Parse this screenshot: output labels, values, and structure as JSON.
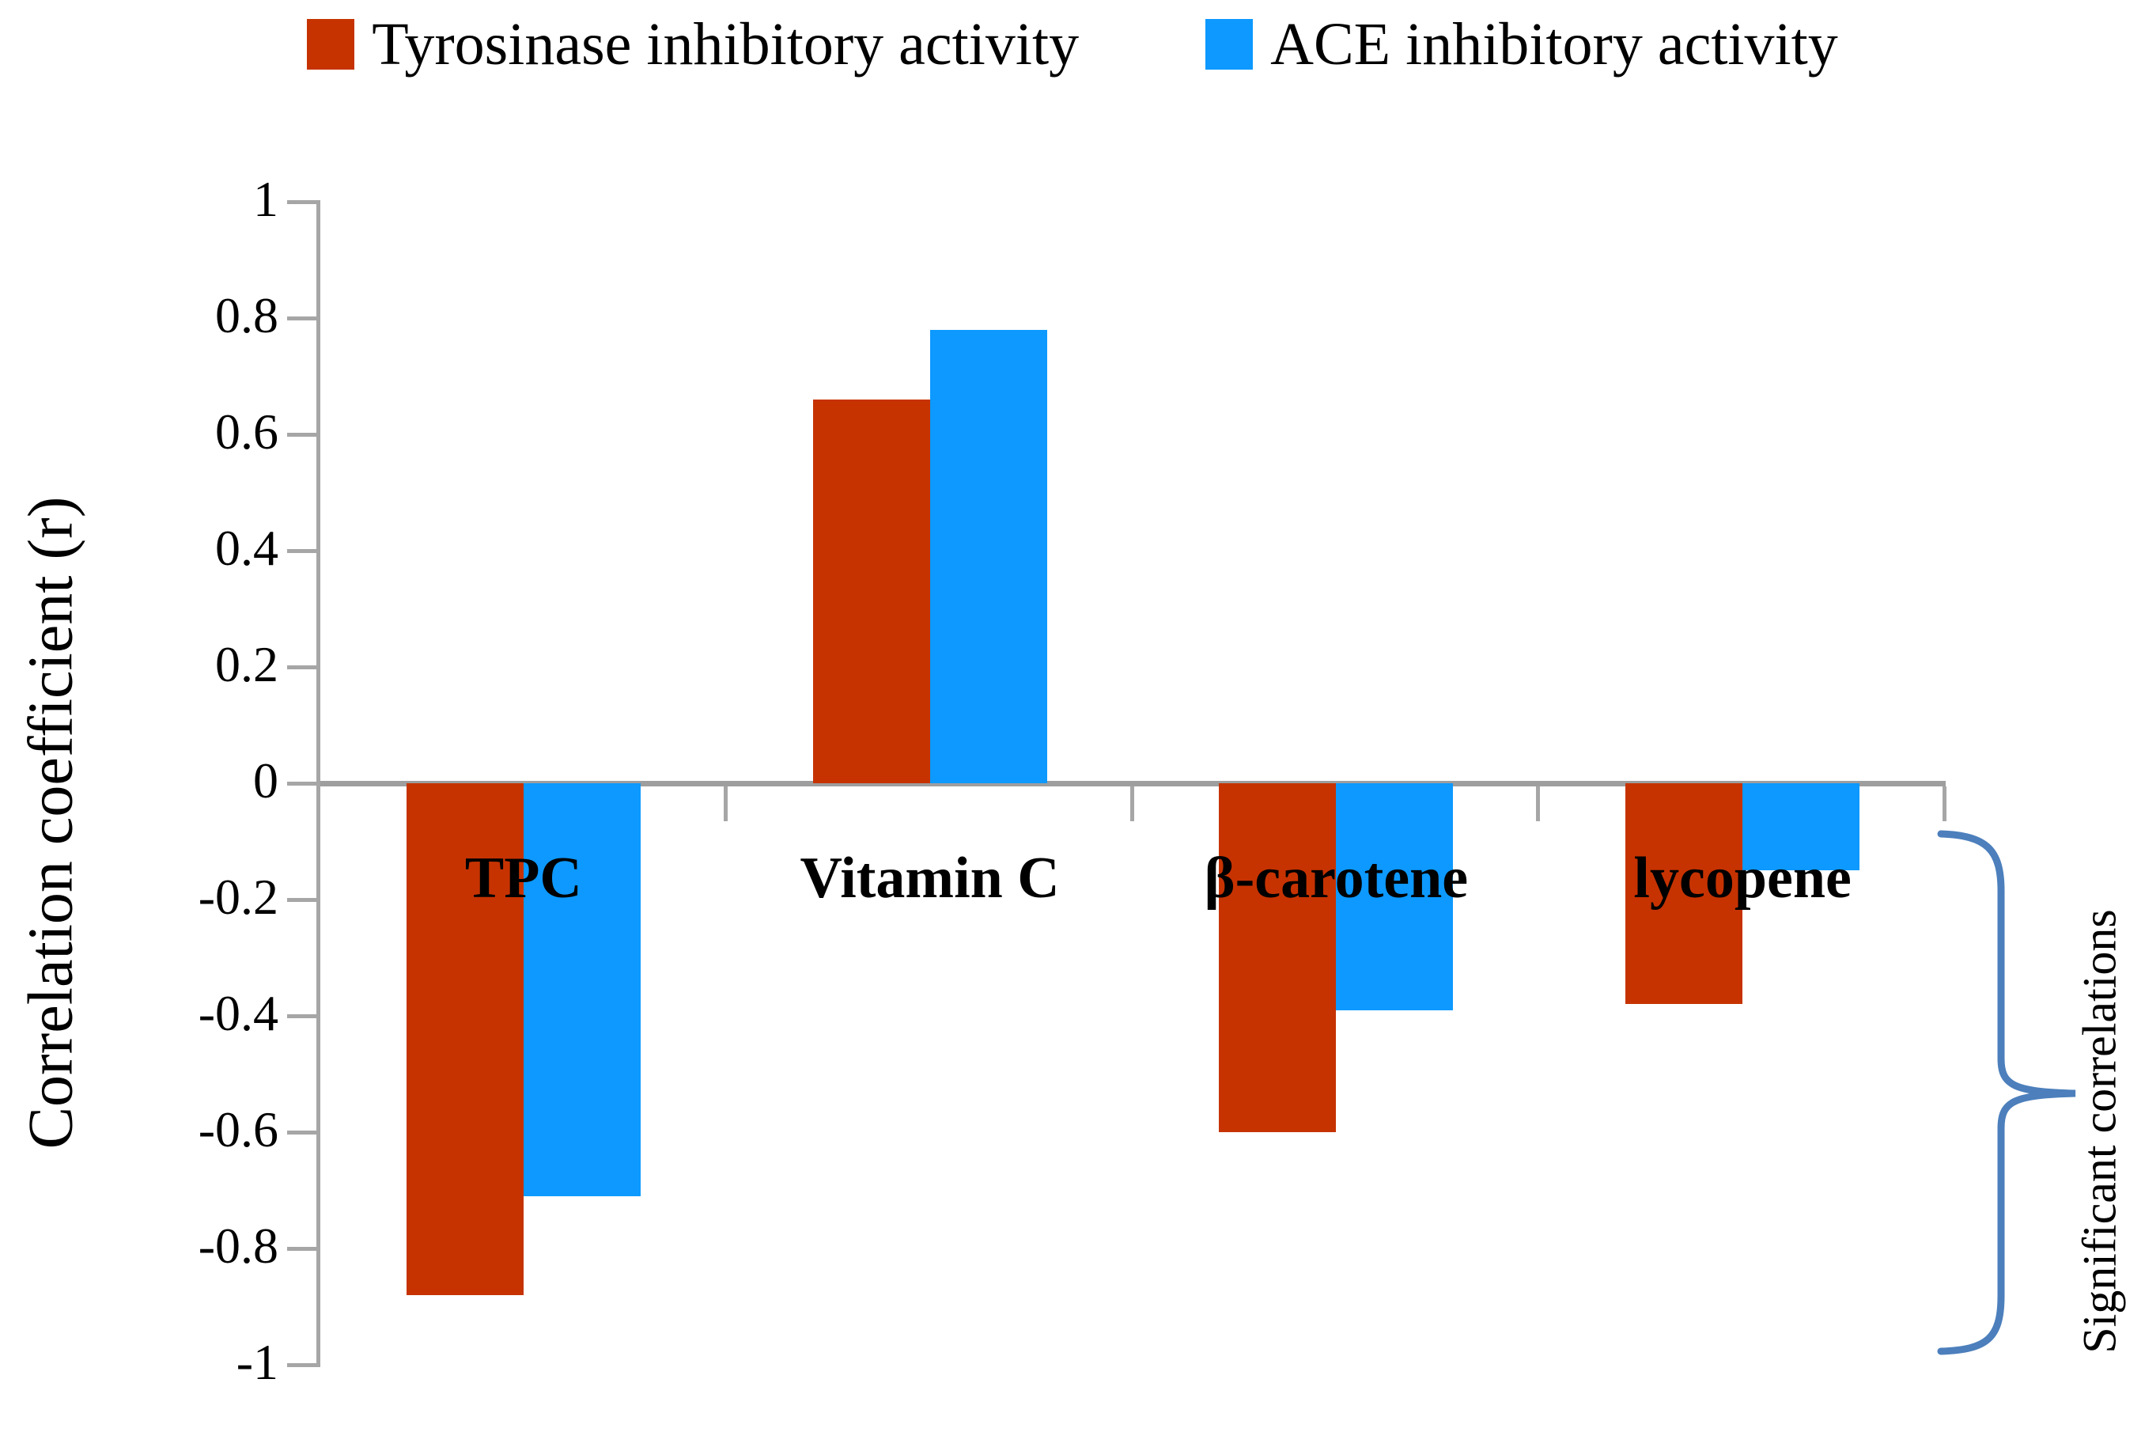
{
  "chart_data": {
    "type": "bar",
    "title": "",
    "categories": [
      "TPC",
      "Vitamin C",
      "β-carotene",
      "lycopene"
    ],
    "series": [
      {
        "name": "Tyrosinase inhibitory activity",
        "color": "#C63301",
        "values": [
          -0.88,
          0.66,
          -0.6,
          -0.38
        ]
      },
      {
        "name": "ACE inhibitory activity",
        "color": "#0D99FF",
        "values": [
          -0.71,
          0.78,
          -0.39,
          -0.15
        ]
      }
    ],
    "xlabel": "",
    "ylabel": "Correlation coefficient (r)",
    "ylim": [
      -1,
      1
    ],
    "y_ticks": [
      1,
      0.8,
      0.6,
      0.4,
      0.2,
      0,
      -0.2,
      -0.4,
      -0.6,
      -0.8,
      -1
    ],
    "grid": false,
    "legend_position": "top",
    "axis_color": "#A6A6A6",
    "annotation": {
      "label": "Significant correlations",
      "brace_color": "#4C7FBC"
    }
  }
}
